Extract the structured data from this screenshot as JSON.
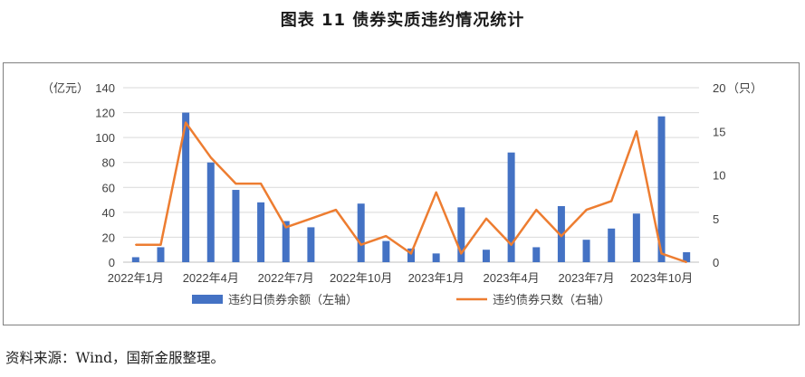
{
  "title": "图表 11  债券实质违约情况统计",
  "source": "资料来源：Wind，国新金服整理。",
  "colors": {
    "bar": "#4472C4",
    "line": "#ED7D31",
    "grid": "#D9D9D9",
    "axis": "#BFBFBF"
  },
  "chart_data": {
    "type": "bar",
    "left_axis": {
      "unit": "（亿元）",
      "min": 0,
      "max": 140,
      "step": 20
    },
    "right_axis": {
      "unit": "（只）",
      "min": 0,
      "max": 20,
      "step": 5
    },
    "right_axis_max_label": "20",
    "x": [
      "2022年1月",
      "2022年2月",
      "2022年3月",
      "2022年4月",
      "2022年5月",
      "2022年6月",
      "2022年7月",
      "2022年8月",
      "2022年9月",
      "2022年10月",
      "2022年11月",
      "2022年12月",
      "2023年1月",
      "2023年2月",
      "2023年3月",
      "2023年4月",
      "2023年5月",
      "2023年6月",
      "2023年7月",
      "2023年8月",
      "2023年9月",
      "2023年10月",
      "2023年11月"
    ],
    "x_tick_labels": [
      "2022年1月",
      "",
      "",
      "2022年4月",
      "",
      "",
      "2022年7月",
      "",
      "",
      "2022年10月",
      "",
      "",
      "2023年1月",
      "",
      "",
      "2023年4月",
      "",
      "",
      "2023年7月",
      "",
      "",
      "2023年10月",
      ""
    ],
    "series": [
      {
        "name": "违约日债券余额（左轴）",
        "type": "bar",
        "axis": "left",
        "values": [
          4,
          12,
          120,
          80,
          58,
          48,
          33,
          28,
          0,
          47,
          17,
          11,
          7,
          44,
          10,
          88,
          12,
          45,
          18,
          27,
          39,
          117,
          8
        ]
      },
      {
        "name": "违约债券只数（右轴）",
        "type": "line",
        "axis": "right",
        "values": [
          2,
          2,
          16,
          12,
          9,
          9,
          4,
          5,
          6,
          2,
          3,
          1,
          8,
          1,
          5,
          2,
          6,
          3,
          6,
          7,
          15,
          1,
          0
        ]
      }
    ],
    "grid": true,
    "legend_position": "bottom"
  }
}
